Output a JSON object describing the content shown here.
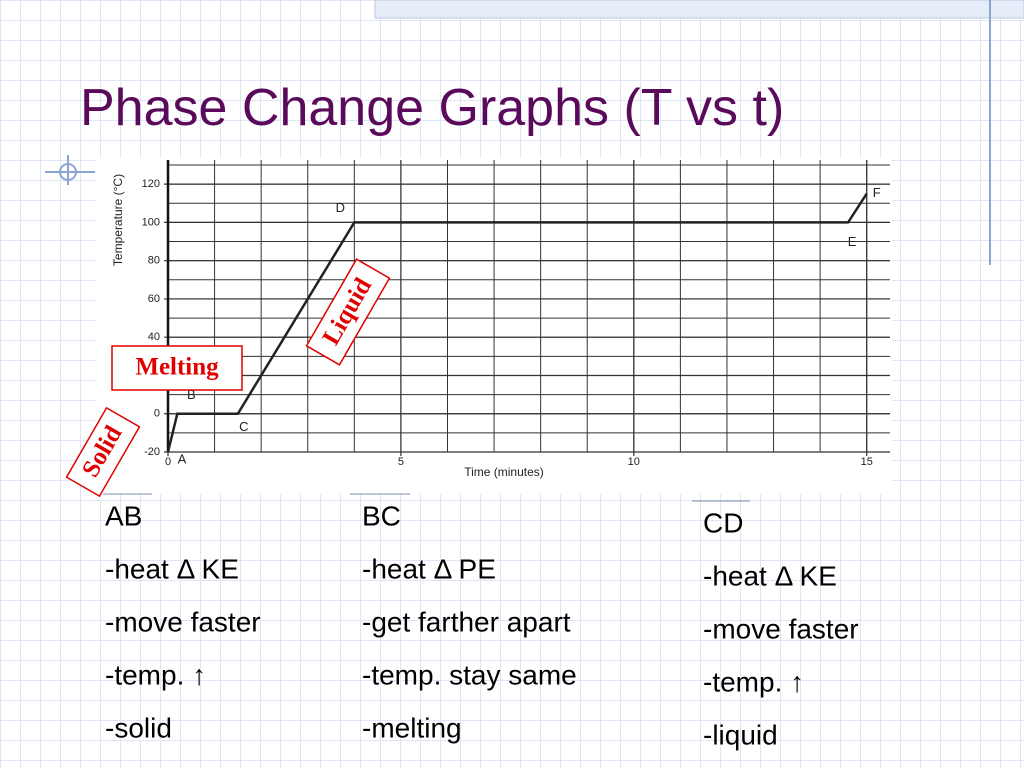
{
  "title": "Phase Change Graphs (T vs t)",
  "chart_data": {
    "type": "line",
    "x_label": "Time (minutes)",
    "y_label": "Temperature (°C)",
    "x": [
      0,
      0.2,
      1.5,
      4,
      14.6,
      15
    ],
    "series": [
      {
        "color": "#222222",
        "values": [
          -20,
          0,
          0,
          100,
          100,
          115
        ]
      }
    ],
    "point_labels": [
      "A",
      "B",
      "C",
      "D",
      "E",
      "F"
    ],
    "xlim": [
      0,
      15.5
    ],
    "ylim": [
      -20,
      130
    ],
    "xticks": [
      0,
      5,
      10,
      15
    ],
    "yticks": [
      -20,
      0,
      20,
      40,
      60,
      80,
      100,
      120
    ],
    "grid": true
  },
  "annotations": [
    "Solid",
    "Melting",
    "Liquid"
  ],
  "columns": [
    {
      "lines": [
        "AB",
        "-heat Δ KE",
        "-move faster",
        "-temp. ↑",
        "-solid"
      ]
    },
    {
      "lines": [
        "BC",
        "-heat Δ PE",
        "-get farther apart",
        "-temp. stay same",
        "-melting"
      ]
    },
    {
      "lines": [
        "CD",
        "-heat Δ KE",
        "-move faster",
        "-temp. ↑",
        "-liquid"
      ]
    }
  ]
}
